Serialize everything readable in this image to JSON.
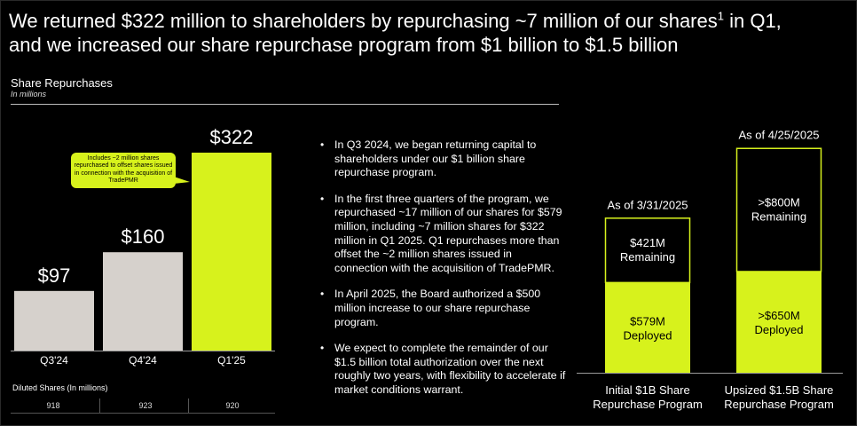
{
  "headline": {
    "line1_a": "We returned $322 million to shareholders by repurchasing ~7 million of our shares",
    "line1_sup": "1",
    "line1_b": " in Q1,",
    "line2": "and we increased our share repurchase program from $1 billion to $1.5 billion"
  },
  "section": {
    "title": "Share Repurchases",
    "subtitle": "In millions"
  },
  "callout": "Includes ~2 million shares repurchased to offset shares issued in connection with the acquisition of TradePMR",
  "diluted": {
    "title": "Diluted Shares (In millions)",
    "values": [
      "918",
      "923",
      "920"
    ]
  },
  "bullets": [
    "In Q3 2024, we began returning capital to shareholders under our $1 billion share repurchase program.",
    "In the first three quarters of the program, we repurchased ~17 million of our shares for $579 million, including ~7 million shares for $322 million in Q1 2025. Q1 repurchases more than offset the ~2 million shares issued in connection with the acquisition of TradePMR.",
    "In April 2025, the Board authorized a $500 million increase to our share repurchase program.",
    "We expect to complete the remainder of our $1.5 billion total authorization over the next roughly two years, with flexibility to accelerate if market conditions warrant."
  ],
  "colors": {
    "accent": "#d7f21c",
    "gray_bar": "#d6d1cc",
    "background": "#000000"
  },
  "chart_data": [
    {
      "type": "bar",
      "categories": [
        "Q3'24",
        "Q4'24",
        "Q1'25"
      ],
      "values": [
        97,
        160,
        322
      ],
      "labels": [
        "$97",
        "$160",
        "$322"
      ],
      "colors": [
        "#d6d1cc",
        "#d6d1cc",
        "#d7f21c"
      ],
      "ylim": [
        0,
        322
      ]
    },
    {
      "type": "bar",
      "stacked": true,
      "categories": [
        "Initial $1B Share Repurchase Program",
        "Upsized $1.5B Share Repurchase Program"
      ],
      "category_lines": [
        [
          "Initial $1B Share",
          "Repurchase Program"
        ],
        [
          "Upsized $1.5B Share",
          "Repurchase Program"
        ]
      ],
      "dates": [
        "As of 3/31/2025",
        "As of 4/25/2025"
      ],
      "deployed": [
        579,
        650
      ],
      "remaining": [
        421,
        800
      ],
      "deployed_labels": [
        [
          "$579M",
          "Deployed"
        ],
        [
          ">$650M",
          "Deployed"
        ]
      ],
      "remaining_labels": [
        [
          "$421M",
          "Remaining"
        ],
        [
          ">$800M",
          "Remaining"
        ]
      ],
      "totals": [
        1000,
        1500
      ]
    }
  ]
}
